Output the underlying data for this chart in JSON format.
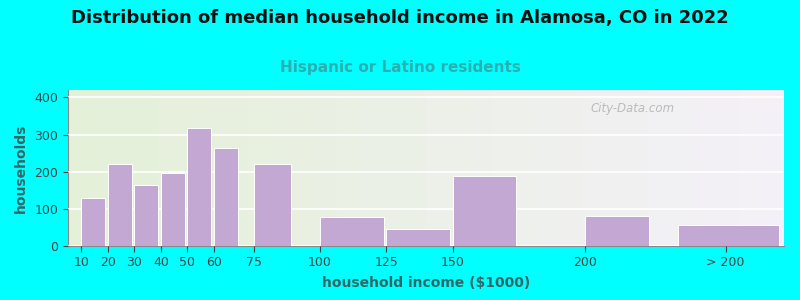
{
  "title": "Distribution of median household income in Alamosa, CO in 2022",
  "subtitle": "Hispanic or Latino residents",
  "xlabel": "household income ($1000)",
  "ylabel": "households",
  "background_outer": "#00FFFF",
  "bar_color": "#C4A8D4",
  "yticks": [
    0,
    100,
    200,
    300,
    400
  ],
  "ylim": [
    0,
    420
  ],
  "bar_lefts": [
    10,
    20,
    30,
    40,
    50,
    60,
    75,
    100,
    125,
    150,
    200,
    235
  ],
  "bar_widths": [
    9,
    9,
    9,
    9,
    9,
    9,
    14,
    24,
    24,
    24,
    24,
    38
  ],
  "bar_heights": [
    130,
    220,
    165,
    197,
    317,
    265,
    220,
    78,
    45,
    188,
    80,
    57
  ],
  "xtick_positions": [
    10,
    20,
    30,
    40,
    50,
    60,
    75,
    100,
    125,
    150,
    200,
    253
  ],
  "xtick_labels": [
    "10",
    "20",
    "30",
    "40",
    "50",
    "60",
    "75",
    "100",
    "125",
    "150",
    "200",
    "> 200"
  ],
  "xlim": [
    5,
    275
  ],
  "title_fontsize": 13,
  "subtitle_fontsize": 11,
  "subtitle_color": "#2AB0B0",
  "title_color": "#111111",
  "axis_label_fontsize": 10,
  "axis_label_color": "#336666",
  "tick_fontsize": 9,
  "tick_color": "#444444",
  "watermark_text": "City-Data.com",
  "plot_bg_left_color": "#E4F0D8",
  "plot_bg_right_color": "#F4F0F8",
  "grid_color": "#FFFFFF",
  "grid_linewidth": 1.2
}
